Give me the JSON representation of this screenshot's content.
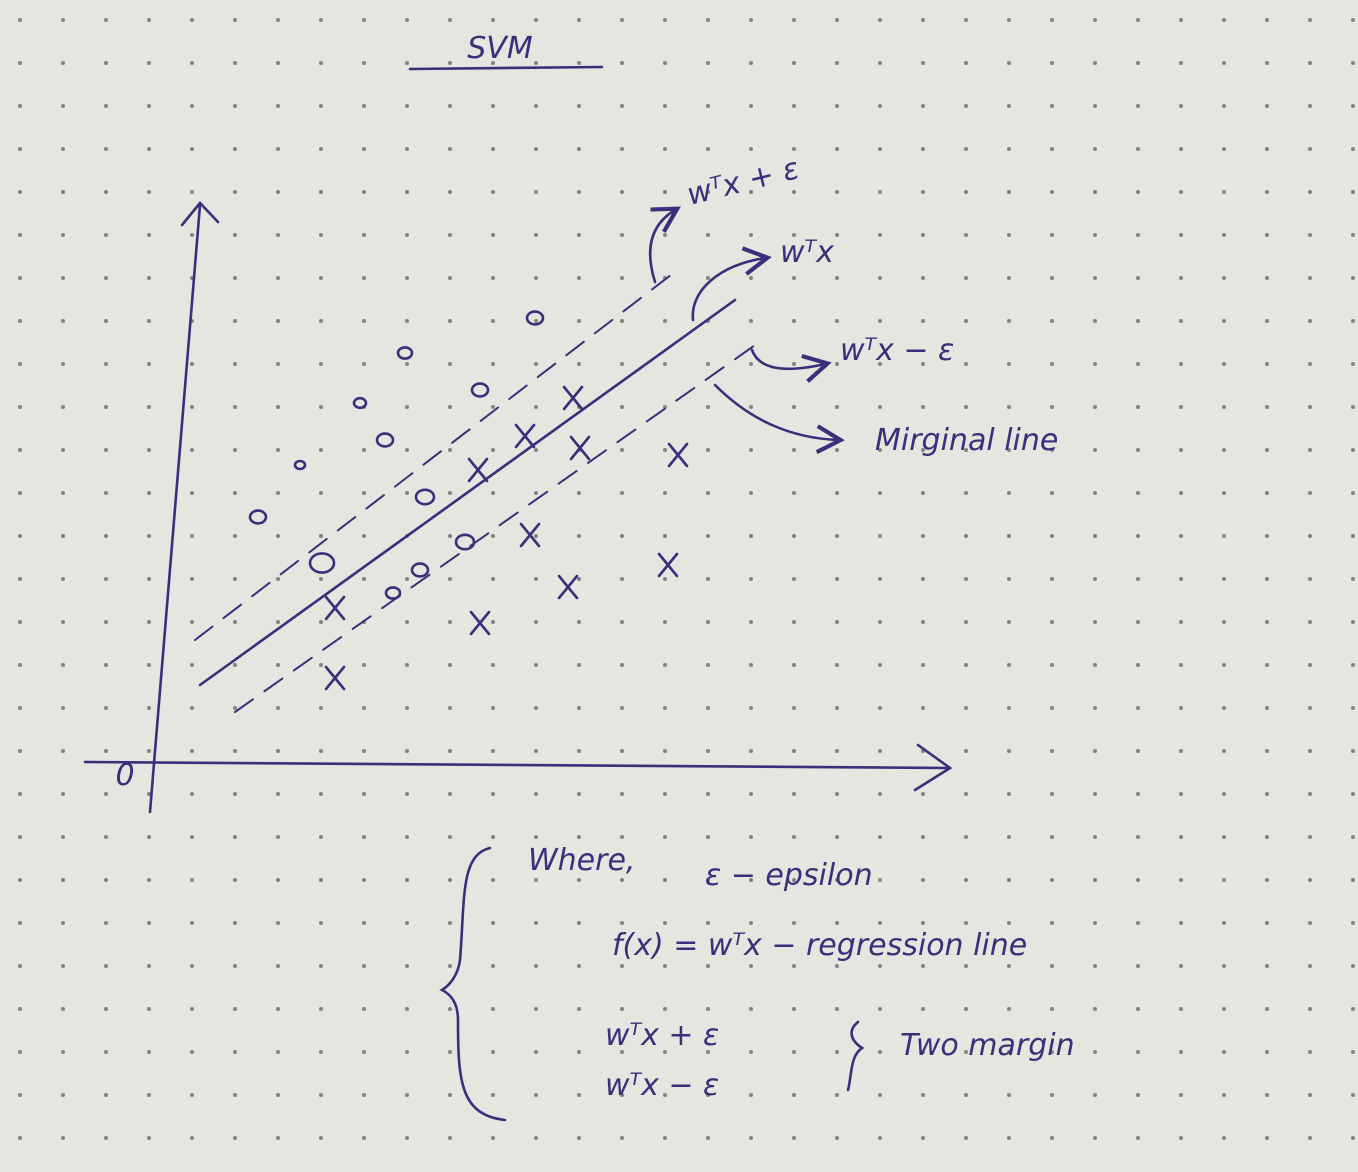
{
  "title": "SVM",
  "plot": {
    "origin": "0",
    "labels": {
      "upper_margin": "wᵀx + ε",
      "regression": "wᵀx",
      "lower_margin": "wᵀx − ε",
      "marginal": "Mirginal line"
    }
  },
  "notes": {
    "where": "Where,",
    "epsilon": "ε − epsilon",
    "regression": "f(x) = wᵀx − regression line",
    "margin_upper": "wᵀx + ε",
    "margin_lower": "wᵀx − ε",
    "two_margin": "Two margin"
  }
}
